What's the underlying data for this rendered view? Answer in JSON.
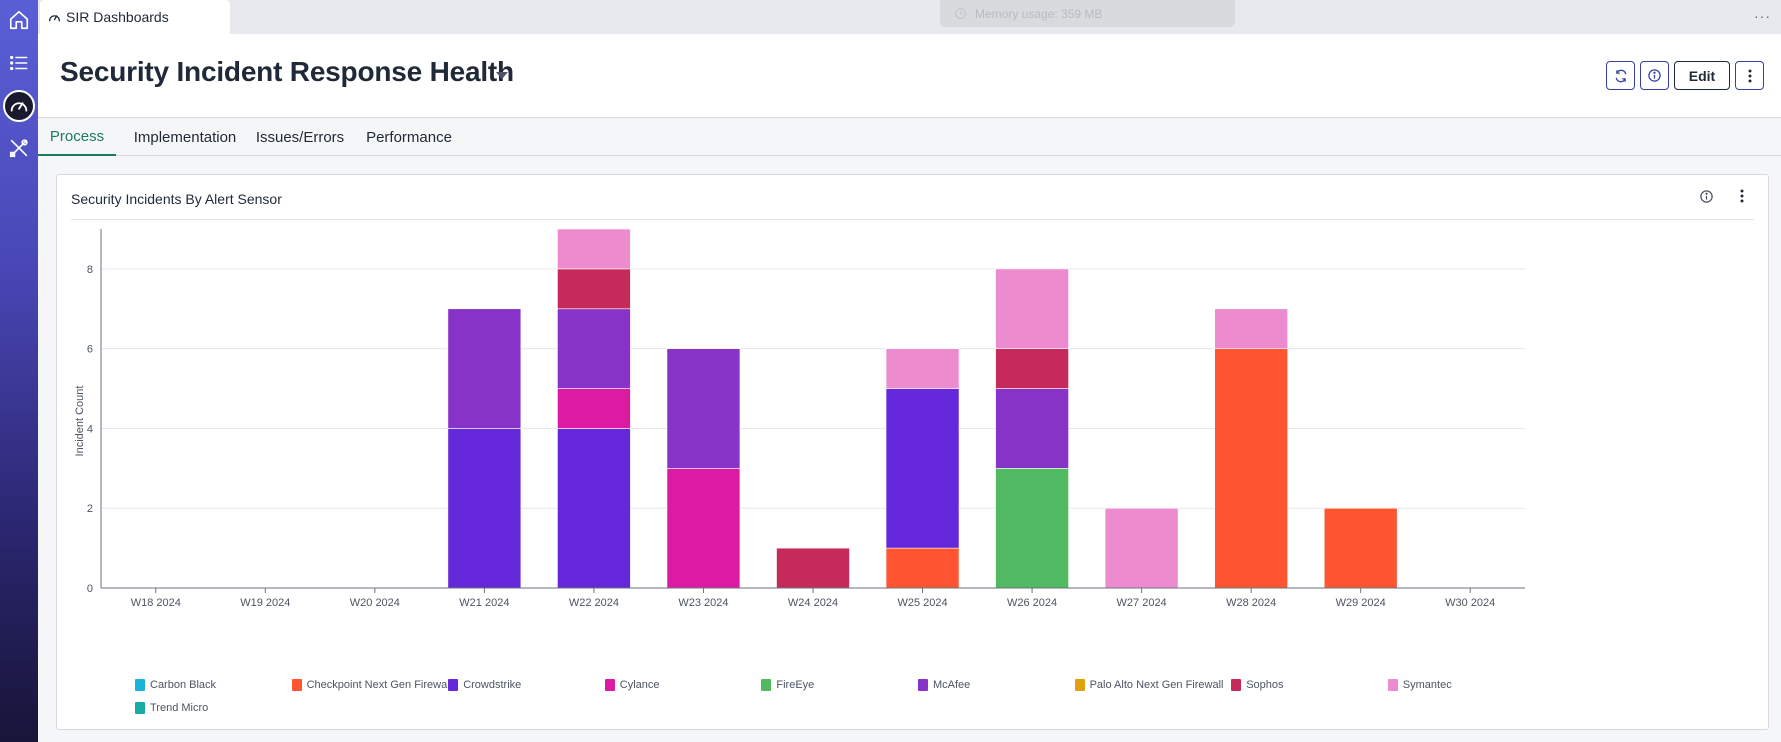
{
  "app_tab": {
    "label": "SIR Dashboards"
  },
  "memory": {
    "label": "Memory usage: 359 MB"
  },
  "header": {
    "title": "Security Incident Response Health",
    "edit_label": "Edit"
  },
  "dashboard_tabs": [
    {
      "label": "Process",
      "active": true
    },
    {
      "label": "Implementation",
      "active": false
    },
    {
      "label": "Issues/Errors",
      "active": false
    },
    {
      "label": "Performance",
      "active": false
    }
  ],
  "widget": {
    "title": "Security Incidents By Alert Sensor"
  },
  "sidebar": {
    "icons": [
      "home-icon",
      "list-icon",
      "dashboard-gauge-icon",
      "tools-icon"
    ]
  },
  "chart_data": {
    "type": "bar",
    "stacked": true,
    "title": "Security Incidents By Alert Sensor",
    "xlabel": "",
    "ylabel": "Incident Count",
    "ylim": [
      0,
      9
    ],
    "yticks": [
      0,
      2,
      4,
      6,
      8
    ],
    "grid": true,
    "legend_position": "bottom",
    "categories": [
      "W18 2024",
      "W19 2024",
      "W20 2024",
      "W21 2024",
      "W22 2024",
      "W23 2024",
      "W24 2024",
      "W25 2024",
      "W26 2024",
      "W27 2024",
      "W28 2024",
      "W29 2024",
      "W30 2024"
    ],
    "series": [
      {
        "name": "Carbon Black",
        "color": "#1ab4d9",
        "values": [
          0,
          0,
          0,
          0,
          0,
          0,
          0,
          0,
          0,
          0,
          0,
          0,
          0
        ]
      },
      {
        "name": "Checkpoint Next Gen Firewall",
        "color": "#ff5530",
        "values": [
          0,
          0,
          0,
          0,
          0,
          0,
          0,
          1,
          0,
          0,
          6,
          2,
          0
        ]
      },
      {
        "name": "Crowdstrike",
        "color": "#6427d9",
        "values": [
          0,
          0,
          0,
          4,
          4,
          0,
          0,
          4,
          0,
          0,
          0,
          0,
          0
        ]
      },
      {
        "name": "Cylance",
        "color": "#dd1aa3",
        "values": [
          0,
          0,
          0,
          0,
          1,
          3,
          0,
          0,
          0,
          0,
          0,
          0,
          0
        ]
      },
      {
        "name": "FireEye",
        "color": "#51b961",
        "values": [
          0,
          0,
          0,
          0,
          0,
          0,
          0,
          0,
          3,
          0,
          0,
          0,
          0
        ]
      },
      {
        "name": "McAfee",
        "color": "#8833c7",
        "values": [
          0,
          0,
          0,
          3,
          2,
          3,
          0,
          0,
          2,
          0,
          0,
          0,
          0
        ]
      },
      {
        "name": "Palo Alto Next Gen Firewall",
        "color": "#e0a10f",
        "values": [
          0,
          0,
          0,
          0,
          0,
          0,
          0,
          0,
          0,
          0,
          0,
          0,
          0
        ]
      },
      {
        "name": "Sophos",
        "color": "#c52a5b",
        "values": [
          0,
          0,
          0,
          0,
          1,
          0,
          1,
          0,
          1,
          0,
          0,
          0,
          0
        ]
      },
      {
        "name": "Symantec",
        "color": "#ec8ccf",
        "values": [
          0,
          0,
          0,
          0,
          1,
          0,
          0,
          1,
          2,
          2,
          1,
          0,
          0
        ]
      },
      {
        "name": "Trend Micro",
        "color": "#1aaba7",
        "values": [
          0,
          0,
          0,
          0,
          0,
          0,
          0,
          0,
          0,
          0,
          0,
          0,
          0
        ]
      }
    ]
  }
}
